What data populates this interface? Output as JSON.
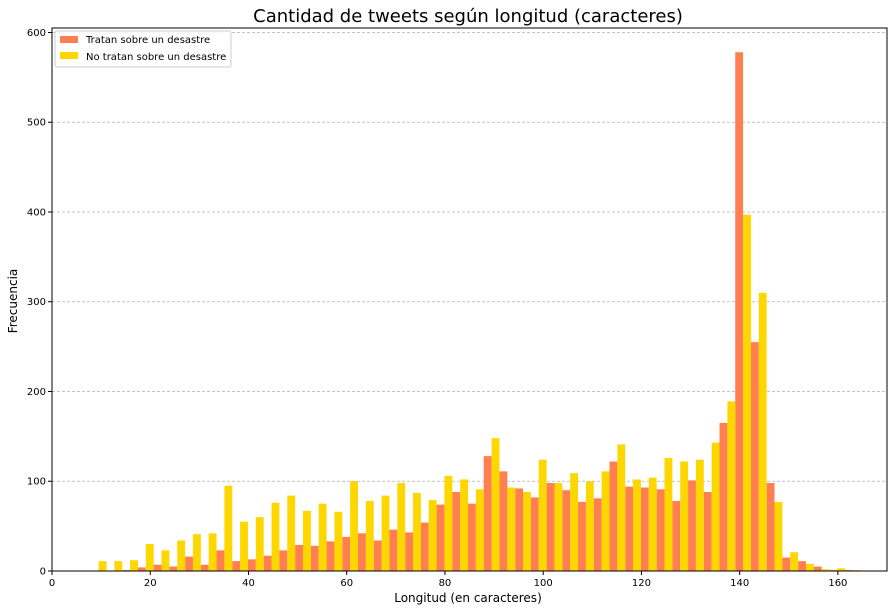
{
  "chart_data": {
    "type": "bar",
    "title": "Cantidad de tweets según longitud (caracteres)",
    "xlabel": "Longitud (en caracteres)",
    "ylabel": "Frecuencia",
    "xlim": [
      0,
      170
    ],
    "ylim": [
      0,
      605
    ],
    "xticks": [
      0,
      20,
      40,
      60,
      80,
      100,
      120,
      140,
      160
    ],
    "yticks": [
      0,
      100,
      200,
      300,
      400,
      500,
      600
    ],
    "grid": "horizontal-dashed",
    "legend_position": "top-left",
    "bin_centers": [
      9.5,
      12.7,
      15.9,
      19.1,
      22.3,
      25.5,
      28.7,
      31.9,
      35.1,
      38.3,
      41.5,
      44.7,
      47.9,
      51.1,
      54.3,
      57.5,
      60.7,
      63.9,
      67.1,
      70.3,
      73.5,
      76.7,
      79.9,
      83.1,
      86.3,
      89.5,
      92.7,
      95.9,
      99.1,
      102.3,
      105.5,
      108.7,
      111.9,
      115.1,
      118.3,
      121.5,
      124.7,
      127.9,
      131.1,
      134.3,
      137.5,
      140.7,
      143.9,
      147.1,
      150.3,
      153.5,
      156.7,
      159.9,
      163.1
    ],
    "series": [
      {
        "name": "Tratan sobre un desastre",
        "color": "#FF7F50",
        "values": [
          0,
          0,
          1,
          4,
          7,
          5,
          16,
          7,
          23,
          11,
          13,
          17,
          23,
          29,
          28,
          33,
          38,
          42,
          34,
          46,
          43,
          54,
          74,
          88,
          75,
          128,
          111,
          92,
          82,
          98,
          90,
          77,
          81,
          122,
          94,
          93,
          91,
          78,
          101,
          88,
          165,
          578,
          255,
          98,
          15,
          11,
          5,
          1,
          1
        ]
      },
      {
        "name": "No tratan sobre un desastre",
        "color": "#FFD700",
        "values": [
          11,
          11,
          12,
          30,
          23,
          34,
          41,
          42,
          95,
          55,
          60,
          76,
          84,
          67,
          75,
          66,
          100,
          78,
          84,
          98,
          87,
          79,
          106,
          102,
          91,
          148,
          93,
          88,
          124,
          98,
          109,
          100,
          111,
          141,
          102,
          104,
          126,
          122,
          124,
          143,
          189,
          397,
          310,
          77,
          21,
          8,
          2,
          3,
          1
        ]
      }
    ]
  }
}
